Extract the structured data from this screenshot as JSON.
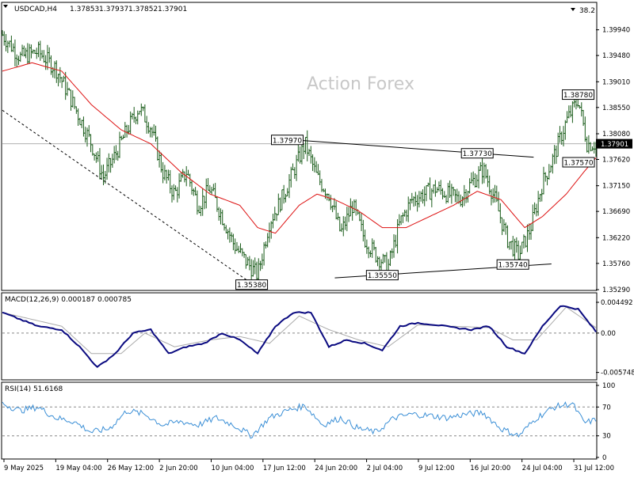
{
  "header": {
    "symbol": "USDCAD,H4",
    "open": "1.37853",
    "high": "1.37937",
    "low": "1.37852",
    "close": "1.37901",
    "corner_value": "38.2"
  },
  "watermark": "Action Forex",
  "colors": {
    "price_bars": "#1a5c1a",
    "moving_average": "#dd1111",
    "macd_main": "#0a0a80",
    "macd_signal": "#aaaaaa",
    "rsi_line": "#3b8fd6",
    "annotation_line": "#000000",
    "current_price_box": "#000000",
    "background": "#ffffff"
  },
  "chart_data": [
    {
      "type": "ohlc",
      "pane": "price",
      "title": "USDCAD,H4",
      "ylim": [
        1.3529,
        1.4019
      ],
      "y_ticks": [
        "1.39940",
        "1.39480",
        "1.39010",
        "1.38550",
        "1.38080",
        "1.37620",
        "1.37150",
        "1.36690",
        "1.36220",
        "1.35760",
        "1.35290"
      ],
      "current_price": "1.37901",
      "x_labels": [
        "9 May 2025",
        "19 May 04:00",
        "26 May 12:00",
        "2 Jun 20:00",
        "10 Jun 04:00",
        "17 Jun 12:00",
        "24 Jun 20:00",
        "2 Jul 04:00",
        "9 Jul 12:00",
        "16 Jul 20:00",
        "24 Jul 04:00",
        "31 Jul 12:00"
      ],
      "close_path": [
        [
          0,
          1.3985
        ],
        [
          0.03,
          1.3945
        ],
        [
          0.06,
          1.3955
        ],
        [
          0.09,
          1.3925
        ],
        [
          0.12,
          1.386
        ],
        [
          0.15,
          1.379
        ],
        [
          0.17,
          1.373
        ],
        [
          0.19,
          1.377
        ],
        [
          0.21,
          1.3815
        ],
        [
          0.23,
          1.3855
        ],
        [
          0.25,
          1.382
        ],
        [
          0.27,
          1.374
        ],
        [
          0.29,
          1.37
        ],
        [
          0.31,
          1.374
        ],
        [
          0.33,
          1.368
        ],
        [
          0.35,
          1.371
        ],
        [
          0.37,
          1.366
        ],
        [
          0.39,
          1.361
        ],
        [
          0.41,
          1.358
        ],
        [
          0.43,
          1.3555
        ],
        [
          0.45,
          1.365
        ],
        [
          0.47,
          1.369
        ],
        [
          0.49,
          1.374
        ],
        [
          0.51,
          1.379
        ],
        [
          0.53,
          1.373
        ],
        [
          0.55,
          1.37
        ],
        [
          0.57,
          1.363
        ],
        [
          0.59,
          1.368
        ],
        [
          0.61,
          1.362
        ],
        [
          0.63,
          1.359
        ],
        [
          0.65,
          1.357
        ],
        [
          0.67,
          1.365
        ],
        [
          0.69,
          1.369
        ],
        [
          0.71,
          1.37
        ],
        [
          0.73,
          1.371
        ],
        [
          0.75,
          1.37
        ],
        [
          0.77,
          1.369
        ],
        [
          0.79,
          1.372
        ],
        [
          0.81,
          1.3745
        ],
        [
          0.83,
          1.369
        ],
        [
          0.85,
          1.362
        ],
        [
          0.87,
          1.359
        ],
        [
          0.89,
          1.364
        ],
        [
          0.91,
          1.372
        ],
        [
          0.93,
          1.377
        ],
        [
          0.95,
          1.383
        ],
        [
          0.97,
          1.387
        ],
        [
          0.985,
          1.379
        ],
        [
          1.0,
          1.379
        ]
      ],
      "moving_average_path": [
        [
          0,
          1.392
        ],
        [
          0.05,
          1.3935
        ],
        [
          0.1,
          1.392
        ],
        [
          0.15,
          1.386
        ],
        [
          0.2,
          1.3815
        ],
        [
          0.25,
          1.379
        ],
        [
          0.3,
          1.374
        ],
        [
          0.35,
          1.37
        ],
        [
          0.4,
          1.368
        ],
        [
          0.43,
          1.364
        ],
        [
          0.46,
          1.363
        ],
        [
          0.5,
          1.368
        ],
        [
          0.53,
          1.37
        ],
        [
          0.56,
          1.369
        ],
        [
          0.6,
          1.367
        ],
        [
          0.64,
          1.364
        ],
        [
          0.68,
          1.364
        ],
        [
          0.72,
          1.366
        ],
        [
          0.76,
          1.368
        ],
        [
          0.8,
          1.3705
        ],
        [
          0.84,
          1.369
        ],
        [
          0.88,
          1.364
        ],
        [
          0.91,
          1.366
        ],
        [
          0.95,
          1.37
        ],
        [
          0.98,
          1.374
        ],
        [
          1.0,
          1.3765
        ]
      ],
      "price_labels": [
        {
          "label": "1.35380",
          "x": 0.42,
          "y": 1.3538
        },
        {
          "label": "1.37970",
          "x": 0.48,
          "y": 1.3797
        },
        {
          "label": "1.35550",
          "x": 0.64,
          "y": 1.3555
        },
        {
          "label": "1.37730",
          "x": 0.8,
          "y": 1.3773
        },
        {
          "label": "1.35740",
          "x": 0.86,
          "y": 1.3574
        },
        {
          "label": "1.38780",
          "x": 0.97,
          "y": 1.3878
        },
        {
          "label": "1.37570",
          "x": 0.98,
          "y": 1.3757
        }
      ],
      "trendlines": [
        {
          "name": "resistance",
          "from": [
            0.49,
            1.3797
          ],
          "to": [
            0.895,
            1.3766
          ],
          "style": "solid"
        },
        {
          "name": "support",
          "from": [
            0.56,
            1.355
          ],
          "to": [
            0.925,
            1.3575
          ],
          "style": "solid"
        },
        {
          "name": "falling trend",
          "from": [
            0.0,
            1.385
          ],
          "to": [
            0.42,
            1.354
          ],
          "style": "dashed"
        }
      ]
    },
    {
      "type": "line",
      "pane": "macd",
      "title": "MACD(12,26,9) 0.000187 0.000785",
      "ylim": [
        -0.0066,
        0.0053
      ],
      "y_ticks": [
        "0.004492",
        "0.00",
        "-0.005748"
      ],
      "zero_line": 0.0,
      "series": [
        {
          "name": "MACD",
          "values": [
            [
              0,
              0.003
            ],
            [
              0.03,
              0.002
            ],
            [
              0.06,
              0.001
            ],
            [
              0.1,
              0.0005
            ],
            [
              0.13,
              -0.002
            ],
            [
              0.16,
              -0.005
            ],
            [
              0.19,
              -0.003
            ],
            [
              0.22,
              0.0
            ],
            [
              0.25,
              0.0005
            ],
            [
              0.28,
              -0.003
            ],
            [
              0.31,
              -0.002
            ],
            [
              0.34,
              -0.0015
            ],
            [
              0.37,
              0.0
            ],
            [
              0.4,
              -0.001
            ],
            [
              0.43,
              -0.003
            ],
            [
              0.46,
              0.001
            ],
            [
              0.49,
              0.003
            ],
            [
              0.52,
              0.003
            ],
            [
              0.55,
              -0.002
            ],
            [
              0.58,
              -0.001
            ],
            [
              0.61,
              -0.0015
            ],
            [
              0.64,
              -0.0025
            ],
            [
              0.67,
              0.001
            ],
            [
              0.7,
              0.0015
            ],
            [
              0.73,
              0.0012
            ],
            [
              0.76,
              0.0008
            ],
            [
              0.79,
              0.0005
            ],
            [
              0.82,
              0.001
            ],
            [
              0.85,
              -0.002
            ],
            [
              0.88,
              -0.003
            ],
            [
              0.91,
              0.001
            ],
            [
              0.94,
              0.004
            ],
            [
              0.97,
              0.0035
            ],
            [
              1.0,
              0.0002
            ]
          ]
        },
        {
          "name": "Signal",
          "values": [
            [
              0,
              0.003
            ],
            [
              0.05,
              0.002
            ],
            [
              0.1,
              0.001
            ],
            [
              0.15,
              -0.003
            ],
            [
              0.2,
              -0.003
            ],
            [
              0.24,
              0.0
            ],
            [
              0.29,
              -0.002
            ],
            [
              0.35,
              -0.001
            ],
            [
              0.4,
              -0.0005
            ],
            [
              0.45,
              -0.0015
            ],
            [
              0.5,
              0.0025
            ],
            [
              0.55,
              0.0005
            ],
            [
              0.6,
              -0.001
            ],
            [
              0.65,
              -0.002
            ],
            [
              0.7,
              0.0012
            ],
            [
              0.76,
              0.001
            ],
            [
              0.82,
              0.0008
            ],
            [
              0.86,
              -0.001
            ],
            [
              0.9,
              -0.001
            ],
            [
              0.95,
              0.0038
            ],
            [
              1.0,
              0.0008
            ]
          ]
        }
      ]
    },
    {
      "type": "line",
      "pane": "rsi",
      "title": "RSI(14) 51.6168",
      "ylim": [
        0,
        100
      ],
      "y_ticks": [
        "100",
        "70",
        "30",
        "0"
      ],
      "levels": [
        70,
        30
      ],
      "series": [
        {
          "name": "RSI",
          "values": [
            [
              0,
              75
            ],
            [
              0.03,
              65
            ],
            [
              0.06,
              70
            ],
            [
              0.09,
              55
            ],
            [
              0.12,
              50
            ],
            [
              0.15,
              35
            ],
            [
              0.18,
              40
            ],
            [
              0.21,
              65
            ],
            [
              0.24,
              60
            ],
            [
              0.27,
              45
            ],
            [
              0.3,
              50
            ],
            [
              0.33,
              45
            ],
            [
              0.36,
              55
            ],
            [
              0.39,
              45
            ],
            [
              0.42,
              30
            ],
            [
              0.45,
              55
            ],
            [
              0.48,
              65
            ],
            [
              0.51,
              72
            ],
            [
              0.54,
              45
            ],
            [
              0.57,
              55
            ],
            [
              0.6,
              40
            ],
            [
              0.63,
              35
            ],
            [
              0.66,
              55
            ],
            [
              0.69,
              60
            ],
            [
              0.72,
              58
            ],
            [
              0.75,
              55
            ],
            [
              0.78,
              60
            ],
            [
              0.81,
              62
            ],
            [
              0.84,
              40
            ],
            [
              0.87,
              30
            ],
            [
              0.9,
              55
            ],
            [
              0.93,
              70
            ],
            [
              0.96,
              75
            ],
            [
              0.98,
              48
            ],
            [
              1.0,
              52
            ]
          ]
        }
      ]
    }
  ]
}
